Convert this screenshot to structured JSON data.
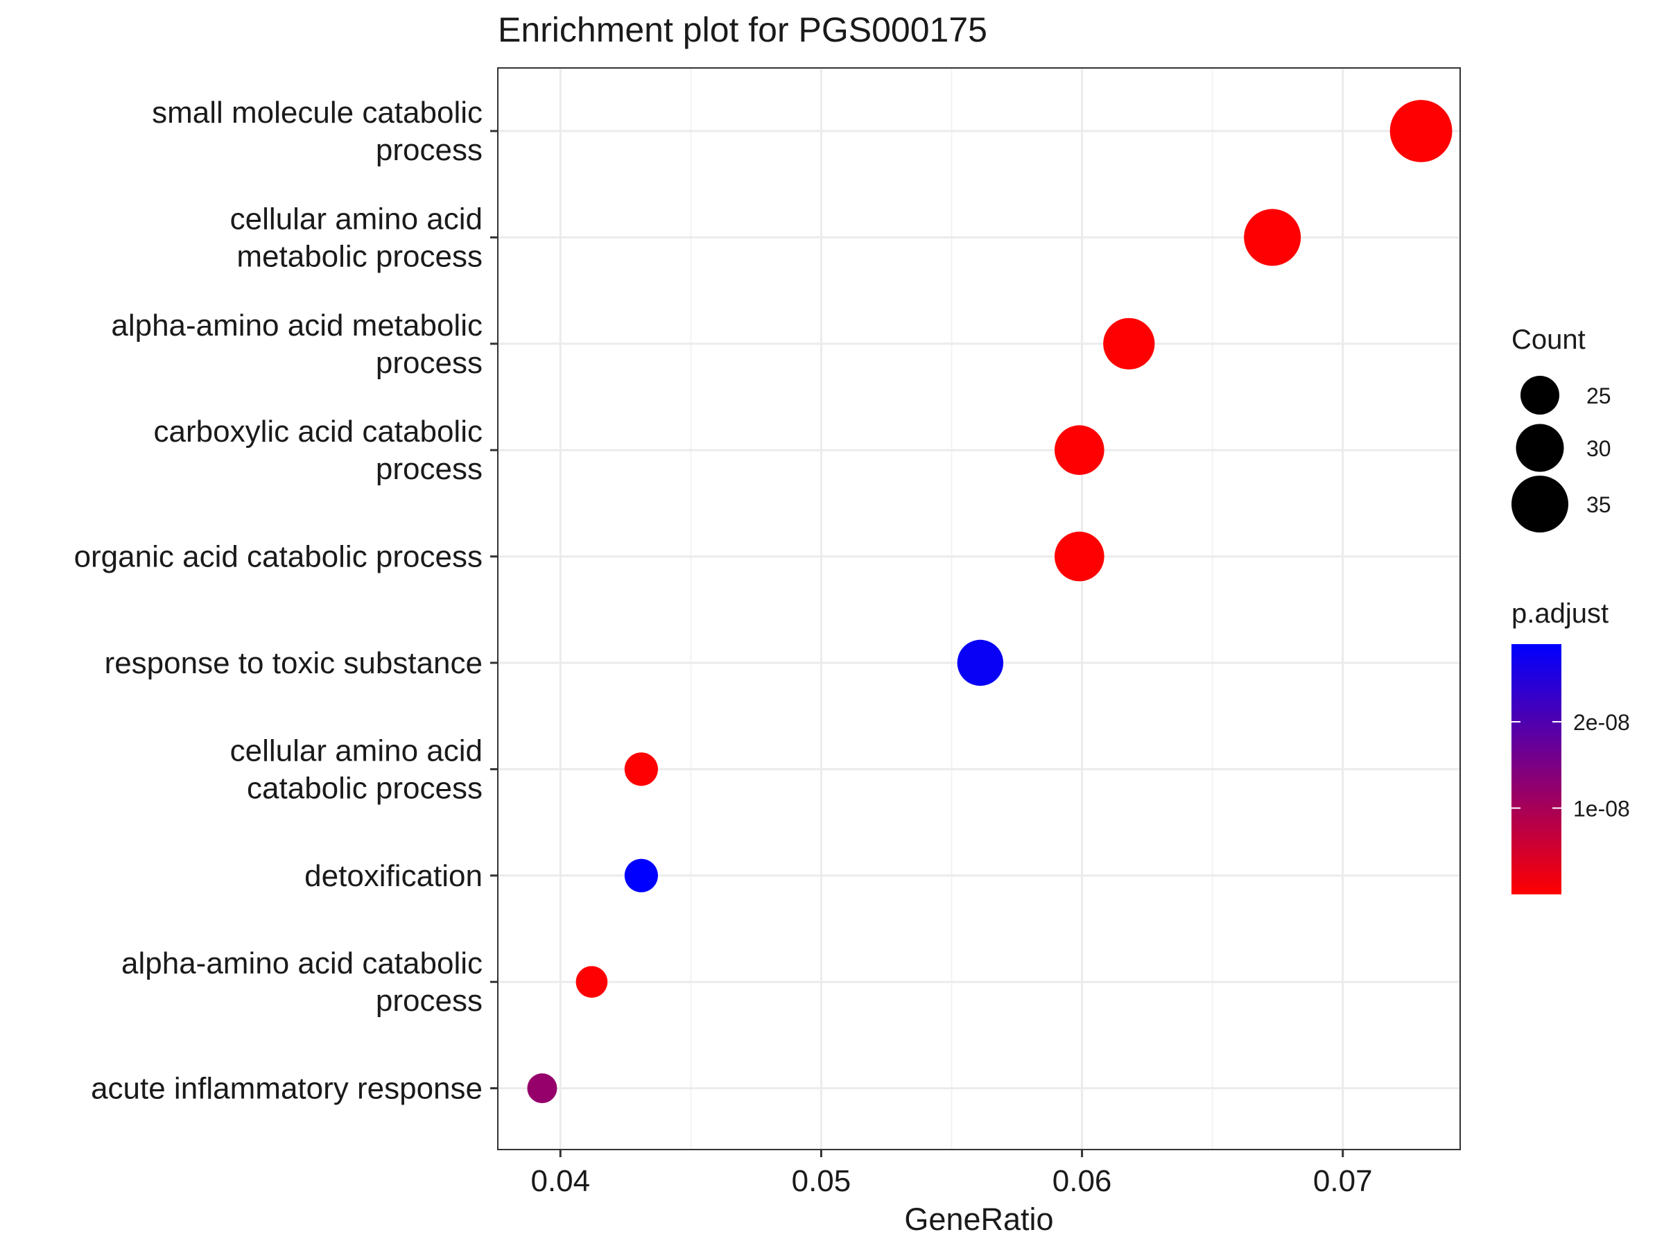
{
  "chart_data": {
    "type": "scatter",
    "title": "Enrichment plot for PGS000175",
    "xlabel": "GeneRatio",
    "ylabel": "",
    "xlim": [
      0.0376,
      0.0745
    ],
    "x_ticks": [
      0.04,
      0.05,
      0.06,
      0.07
    ],
    "x_tick_labels": [
      "0.04",
      "0.05",
      "0.06",
      "0.07"
    ],
    "grid": true,
    "legend_position": "right",
    "categories": [
      {
        "label": [
          "small molecule catabolic",
          "process"
        ]
      },
      {
        "label": [
          "cellular amino acid",
          "metabolic process"
        ]
      },
      {
        "label": [
          "alpha-amino acid metabolic",
          "process"
        ]
      },
      {
        "label": [
          "carboxylic acid catabolic",
          "process"
        ]
      },
      {
        "label": [
          "organic acid catabolic process"
        ]
      },
      {
        "label": [
          "response to toxic substance"
        ]
      },
      {
        "label": [
          "cellular amino acid",
          "catabolic process"
        ]
      },
      {
        "label": [
          "detoxification"
        ]
      },
      {
        "label": [
          "alpha-amino acid catabolic",
          "process"
        ]
      },
      {
        "label": [
          "acute inflammatory response"
        ]
      }
    ],
    "points": [
      {
        "x": 0.073,
        "count": 38,
        "p_adjust": 1e-10
      },
      {
        "x": 0.0673,
        "count": 35,
        "p_adjust": 1e-10
      },
      {
        "x": 0.0618,
        "count": 32,
        "p_adjust": 1e-10
      },
      {
        "x": 0.0599,
        "count": 31,
        "p_adjust": 1e-10
      },
      {
        "x": 0.0599,
        "count": 31,
        "p_adjust": 1e-10
      },
      {
        "x": 0.0561,
        "count": 29,
        "p_adjust": 2.8e-08
      },
      {
        "x": 0.0431,
        "count": 22,
        "p_adjust": 1e-10
      },
      {
        "x": 0.0431,
        "count": 22,
        "p_adjust": 2.9e-08
      },
      {
        "x": 0.0412,
        "count": 21,
        "p_adjust": 1e-10
      },
      {
        "x": 0.0393,
        "count": 20,
        "p_adjust": 1.2e-08
      }
    ],
    "size_legend": {
      "title": "Count",
      "values": [
        25,
        30,
        35
      ],
      "labels": [
        "25",
        "30",
        "35"
      ]
    },
    "color_legend": {
      "title": "p.adjust",
      "min": 0,
      "max": 2.9e-08,
      "low_color": "#ff0000",
      "high_color": "#0000ff",
      "tick_values": [
        1e-08,
        2e-08
      ],
      "tick_labels": [
        "1e-08",
        "2e-08"
      ]
    },
    "colors": {
      "panel_border": "#333333",
      "grid_major": "#ebebeb",
      "grid_minor": "#f3f3f3",
      "point_fill_legend": "#000000"
    }
  }
}
